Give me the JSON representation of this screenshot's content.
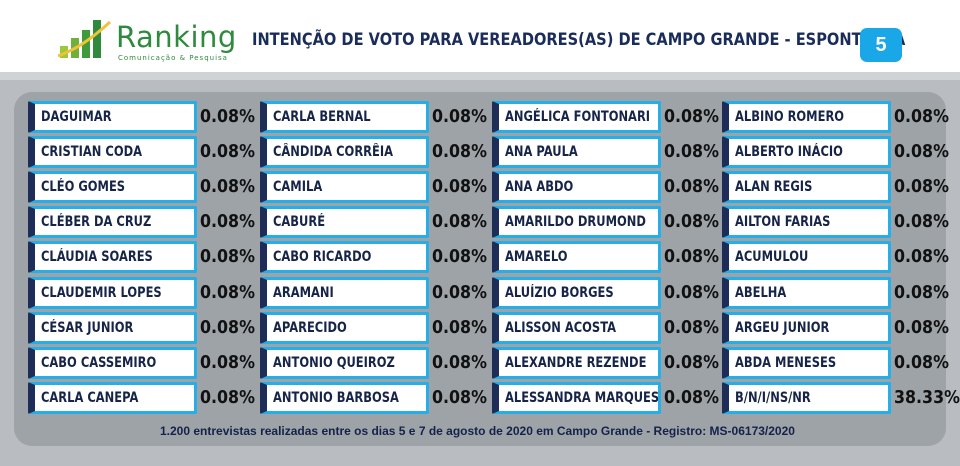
{
  "brand": {
    "name": "Ranking",
    "tagline": "Comunicação & Pesquisa",
    "logo_icon": "bar-growth-logo-icon",
    "color_green": "#2f8a3e"
  },
  "header": {
    "title": "INTENÇÃO DE VOTO PARA VEREADORES(AS) DE CAMPO GRANDE - ESPONTÂNEA",
    "page_badge": "5",
    "badge_color": "#1aa7e8"
  },
  "chart_data": {
    "type": "table",
    "unit": "%",
    "columns": [
      [
        {
          "name": "DAGUIMAR",
          "value": "0.08%"
        },
        {
          "name": "CRISTIAN CODA",
          "value": "0.08%"
        },
        {
          "name": "CLÉO GOMES",
          "value": "0.08%"
        },
        {
          "name": "CLÉBER DA CRUZ",
          "value": "0.08%"
        },
        {
          "name": "CLÁUDIA SOARES",
          "value": "0.08%"
        },
        {
          "name": "CLAUDEMIR LOPES",
          "value": "0.08%"
        },
        {
          "name": "CÉSAR JUNIOR",
          "value": "0.08%"
        },
        {
          "name": "CABO CASSEMIRO",
          "value": "0.08%"
        },
        {
          "name": "CARLA CANEPA",
          "value": "0.08%"
        }
      ],
      [
        {
          "name": "CARLA BERNAL",
          "value": "0.08%"
        },
        {
          "name": "CÂNDIDA CORRÊIA",
          "value": "0.08%"
        },
        {
          "name": "CAMILA",
          "value": "0.08%"
        },
        {
          "name": "CABURÉ",
          "value": "0.08%"
        },
        {
          "name": "CABO RICARDO",
          "value": "0.08%"
        },
        {
          "name": "ARAMANI",
          "value": "0.08%"
        },
        {
          "name": "APARECIDO",
          "value": "0.08%"
        },
        {
          "name": "ANTONIO QUEIROZ",
          "value": "0.08%"
        },
        {
          "name": "ANTONIO BARBOSA",
          "value": "0.08%"
        }
      ],
      [
        {
          "name": "ANGÉLICA FONTONARI",
          "value": "0.08%"
        },
        {
          "name": "ANA PAULA",
          "value": "0.08%"
        },
        {
          "name": "ANA ABDO",
          "value": "0.08%"
        },
        {
          "name": "AMARILDO DRUMOND",
          "value": "0.08%"
        },
        {
          "name": "AMARELO",
          "value": "0.08%"
        },
        {
          "name": "ALUÍZIO BORGES",
          "value": "0.08%"
        },
        {
          "name": "ALISSON ACOSTA",
          "value": "0.08%"
        },
        {
          "name": "ALEXANDRE REZENDE",
          "value": "0.08%"
        },
        {
          "name": "ALESSANDRA MARQUES",
          "value": "0.08%"
        }
      ],
      [
        {
          "name": "ALBINO ROMERO",
          "value": "0.08%"
        },
        {
          "name": "ALBERTO INÁCIO",
          "value": "0.08%"
        },
        {
          "name": "ALAN REGIS",
          "value": "0.08%"
        },
        {
          "name": "AILTON FARIAS",
          "value": "0.08%"
        },
        {
          "name": "ACUMULOU",
          "value": "0.08%"
        },
        {
          "name": "ABELHA",
          "value": "0.08%"
        },
        {
          "name": "ARGEU JUNIOR",
          "value": "0.08%"
        },
        {
          "name": "ABDA MENESES",
          "value": "0.08%"
        },
        {
          "name": "B/N/I/NS/NR",
          "value": "38.33%"
        }
      ]
    ]
  },
  "footer": {
    "note": "1.200 entrevistas realizadas entre os dias 5 e 7 de agosto de 2020 em Campo Grande - Registro:  MS-06173/2020"
  },
  "colors": {
    "box_border": "#25aee8",
    "box_accent": "#1d2d57",
    "background": "#b9bdc1"
  }
}
